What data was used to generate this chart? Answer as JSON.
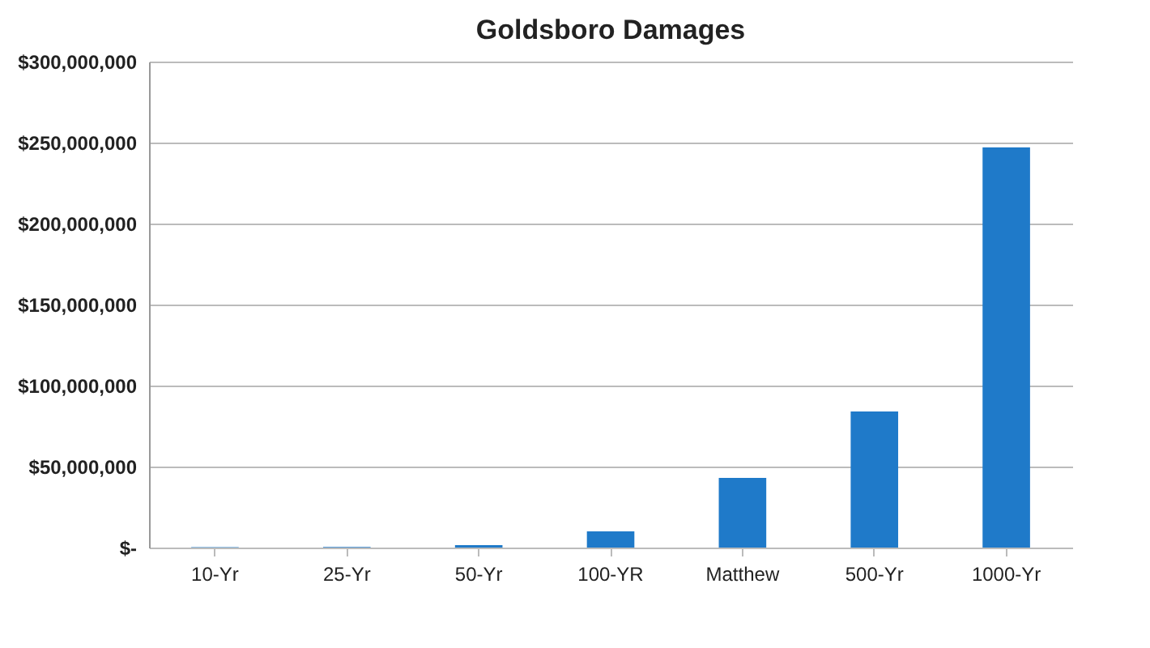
{
  "chart_data": {
    "type": "bar",
    "title": "Goldsboro Damages",
    "categories": [
      "10-Yr",
      "25-Yr",
      "50-Yr",
      "100-YR",
      "Matthew",
      "500-Yr",
      "1000-Yr"
    ],
    "series": [
      {
        "color": "#1f7ac9",
        "values": [
          300000,
          400000,
          1500000,
          10000000,
          43000000,
          84000000,
          247000000
        ]
      }
    ],
    "ylim": [
      0,
      300000000
    ],
    "yticks": [
      {
        "value": 0,
        "label": "$-"
      },
      {
        "value": 50000000,
        "label": "$50,000,000"
      },
      {
        "value": 100000000,
        "label": "$100,000,000"
      },
      {
        "value": 150000000,
        "label": "$150,000,000"
      },
      {
        "value": 200000000,
        "label": "$200,000,000"
      },
      {
        "value": 250000000,
        "label": "$250,000,000"
      },
      {
        "value": 300000000,
        "label": "$300,000,000"
      }
    ],
    "grid": "y"
  }
}
